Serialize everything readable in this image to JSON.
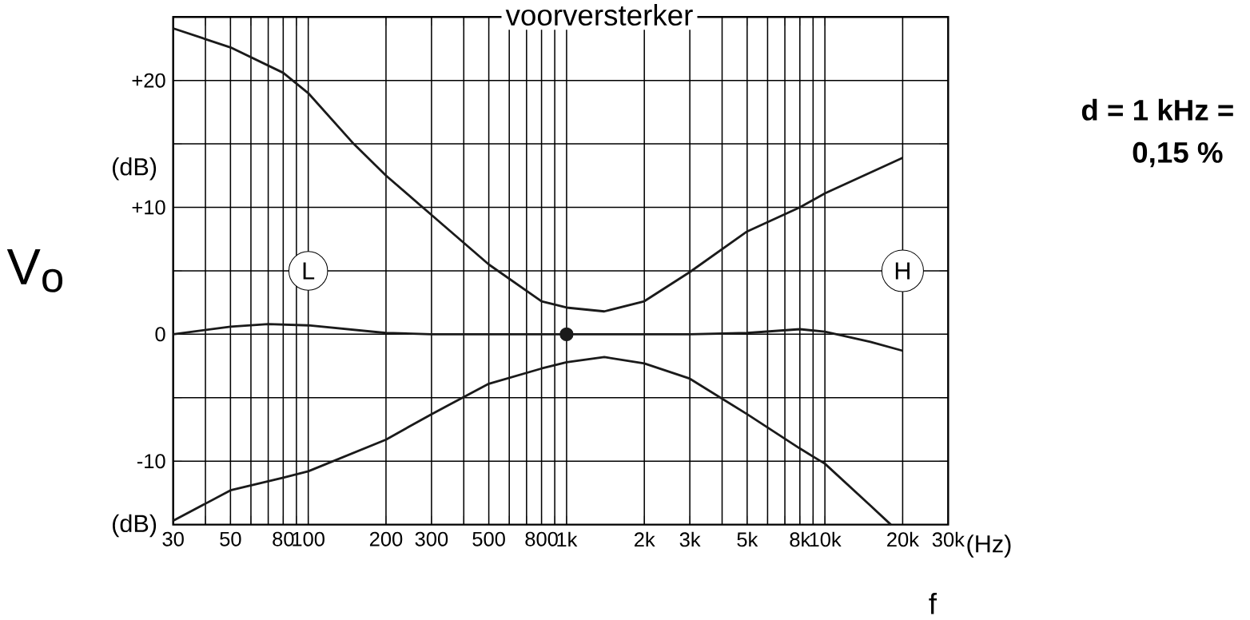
{
  "chart_data": {
    "type": "line",
    "title": "voorversterker",
    "xlabel": "f",
    "ylabel": "V$_{o}$",
    "log": "x",
    "grid": true,
    "marker": "none",
    "line_style": "solid",
    "xlim": [
      30,
      30000
    ],
    "ylim": [
      -15,
      25
    ],
    "xticks": [
      30,
      50,
      80,
      100,
      200,
      300,
      500,
      800,
      {
        "value": 1000,
        "label": "1k"
      },
      {
        "value": 2000,
        "label": "2k"
      },
      {
        "value": 3000,
        "label": "3k"
      },
      {
        "value": 5000,
        "label": "5k"
      },
      {
        "value": 8000,
        "label": "8k"
      },
      {
        "value": 10000,
        "label": "10k"
      },
      {
        "value": 20000,
        "label": "20k"
      },
      {
        "value": 30000,
        "label": "30k"
      },
      {
        "value": 40,
        "label": null
      },
      {
        "value": 60,
        "label": null
      },
      {
        "value": 70,
        "label": null
      },
      {
        "value": 90,
        "label": null
      },
      {
        "value": 400,
        "label": null
      },
      {
        "value": 600,
        "label": null
      },
      {
        "value": 700,
        "label": null
      },
      {
        "value": 900,
        "label": null
      },
      {
        "value": 4000,
        "label": null
      },
      {
        "value": 6000,
        "label": null
      },
      {
        "value": 7000,
        "label": null
      },
      {
        "value": 9000,
        "label": null
      }
    ],
    "yticks": [
      {
        "value": 20,
        "label": "+20"
      },
      {
        "value": 10,
        "label": "+10"
      },
      0,
      -10,
      {
        "value": 15,
        "label": null
      },
      {
        "value": 5,
        "label": null
      },
      {
        "value": -5,
        "label": null
      }
    ],
    "annotations": [
      "(dB)",
      "(dB)",
      "L",
      "H",
      "(Hz)",
      "d = 1 kHz =",
      "0,15 %"
    ],
    "series": [
      {
        "color": "#1a1a1a",
        "x": [
          30,
          50,
          80,
          100,
          150,
          200,
          300,
          500,
          800,
          1000,
          1400,
          2000,
          3000,
          5000,
          8000,
          10000,
          20000
        ],
        "values": [
          24.1,
          22.6,
          20.6,
          19,
          15,
          12.5,
          9.4,
          5.5,
          2.6,
          2.1,
          1.8,
          2.6,
          4.9,
          8.1,
          10,
          11.1,
          13.9
        ]
      },
      {
        "color": "#1a1a1a",
        "x": [
          30,
          50,
          70,
          100,
          200,
          300,
          1000,
          3000,
          5000,
          8000,
          10000,
          15000,
          20000
        ],
        "values": [
          0,
          0.6,
          0.8,
          0.7,
          0.1,
          0,
          0,
          0,
          0.1,
          0.4,
          0.2,
          -0.6,
          -1.3
        ]
      },
      {
        "color": "#1a1a1a",
        "x": [
          30,
          50,
          80,
          100,
          200,
          300,
          500,
          800,
          1000,
          1400,
          2000,
          3000,
          5000,
          8000,
          10000,
          15000,
          18000
        ],
        "values": [
          -14.7,
          -12.3,
          -11.3,
          -10.8,
          -8.3,
          -6.3,
          -3.9,
          -2.7,
          -2.2,
          -1.8,
          -2.3,
          -3.5,
          -6.3,
          -9,
          -10.2,
          -13.5,
          -15
        ]
      },
      {
        "type": "scatter",
        "marker": "circle",
        "color": "#1a1a1a",
        "x": [
          1000
        ],
        "values": [
          0
        ]
      }
    ]
  }
}
